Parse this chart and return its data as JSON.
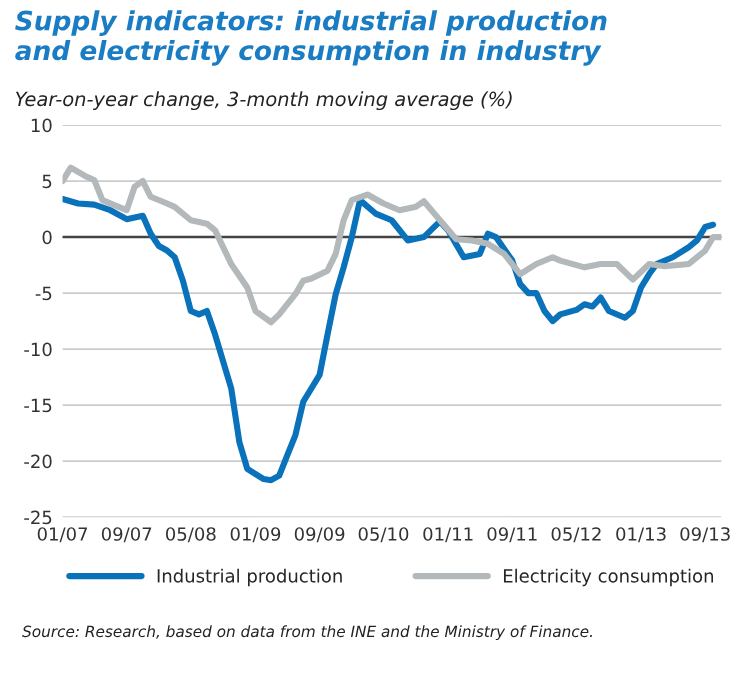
{
  "chart_data": {
    "type": "line",
    "title": "Supply indicators: industrial production\nand electricity consumption in industry",
    "subtitle": "Year-on-year change, 3-month moving average (%)",
    "x": [
      "2007-01",
      "2007-03",
      "2007-05",
      "2007-07",
      "2007-09",
      "2007-11",
      "2007-12",
      "2008-01",
      "2008-02",
      "2008-03",
      "2008-04",
      "2008-05",
      "2008-06",
      "2008-07",
      "2008-08",
      "2008-10",
      "2008-11",
      "2008-12",
      "2009-02",
      "2009-03",
      "2009-04",
      "2009-05",
      "2009-06",
      "2009-07",
      "2009-09",
      "2009-10",
      "2009-11",
      "2009-12",
      "2010-01",
      "2010-02",
      "2010-04",
      "2010-06",
      "2010-08",
      "2010-10",
      "2010-12",
      "2011-01",
      "2011-03",
      "2011-05",
      "2011-06",
      "2011-07",
      "2011-09",
      "2011-10",
      "2011-11",
      "2011-12",
      "2012-01",
      "2012-02",
      "2012-03",
      "2012-05",
      "2012-06",
      "2012-07",
      "2012-08",
      "2012-09",
      "2012-11",
      "2012-12",
      "2013-01",
      "2013-02",
      "2013-03",
      "2013-05",
      "2013-07",
      "2013-08",
      "2013-09",
      "2013-10"
    ],
    "series": [
      {
        "name": "Industrial production",
        "color": "#0a72ba",
        "values": [
          3.4,
          3.0,
          2.9,
          2.4,
          1.6,
          1.9,
          0.3,
          -0.8,
          -1.2,
          -1.8,
          -3.9,
          -6.6,
          -6.9,
          -6.6,
          -8.7,
          -13.5,
          -18.3,
          -20.7,
          -21.6,
          -21.7,
          -21.3,
          -19.5,
          -17.7,
          -14.7,
          -12.3,
          -8.7,
          -5.1,
          -2.7,
          0,
          3.3,
          2.1,
          1.5,
          -0.3,
          0,
          1.4,
          0.6,
          -1.8,
          -1.5,
          0.3,
          0,
          -2.1,
          -4.2,
          -5,
          -5,
          -6.6,
          -7.5,
          -6.9,
          -6.5,
          -6,
          -6.2,
          -5.4,
          -6.6,
          -7.2,
          -6.6,
          -4.5,
          -3.3,
          -2.4,
          -1.8,
          -0.9,
          -0.3,
          0.9,
          1.1
        ]
      },
      {
        "name": "Electricity consumption",
        "color": "#b3b9bb",
        "x": [
          "2007-01",
          "2007-02",
          "2007-04",
          "2007-05",
          "2007-06",
          "2007-08",
          "2007-09",
          "2007-10",
          "2007-11",
          "2007-12",
          "2008-02",
          "2008-03",
          "2008-05",
          "2008-07",
          "2008-08",
          "2008-10",
          "2008-12",
          "2009-01",
          "2009-03",
          "2009-04",
          "2009-06",
          "2009-07",
          "2009-08",
          "2009-10",
          "2009-11",
          "2009-12",
          "2010-01",
          "2010-03",
          "2010-05",
          "2010-07",
          "2010-09",
          "2010-10",
          "2010-12",
          "2011-02",
          "2011-04",
          "2011-06",
          "2011-08",
          "2011-10",
          "2011-12",
          "2012-02",
          "2012-03",
          "2012-06",
          "2012-08",
          "2012-10",
          "2012-12",
          "2013-02",
          "2013-04",
          "2013-07",
          "2013-09",
          "2013-10",
          "2013-11"
        ],
        "values": [
          5.0,
          6.2,
          5.4,
          5.1,
          3.3,
          2.7,
          2.4,
          4.5,
          5.0,
          3.6,
          3.0,
          2.7,
          1.5,
          1.2,
          0.6,
          -2.4,
          -4.5,
          -6.6,
          -7.6,
          -6.9,
          -5.1,
          -3.9,
          -3.7,
          -3.0,
          -1.5,
          1.5,
          3.3,
          3.8,
          3.0,
          2.4,
          2.7,
          3.2,
          1.5,
          -0.2,
          -0.3,
          -0.6,
          -1.5,
          -3.3,
          -2.4,
          -1.8,
          -2.1,
          -2.7,
          -2.4,
          -2.4,
          -3.8,
          -2.4,
          -2.6,
          -2.4,
          -1.2,
          0,
          0
        ]
      }
    ],
    "xlim": [
      "2007-01",
      "2013-11"
    ],
    "xticks": [
      {
        "value": "2007-01",
        "label": "01/07"
      },
      {
        "value": "2007-09",
        "label": "09/07"
      },
      {
        "value": "2008-05",
        "label": "05/08"
      },
      {
        "value": "2009-01",
        "label": "01/09"
      },
      {
        "value": "2009-09",
        "label": "09/09"
      },
      {
        "value": "2010-05",
        "label": "05/10"
      },
      {
        "value": "2011-01",
        "label": "01/11"
      },
      {
        "value": "2011-09",
        "label": "09/11"
      },
      {
        "value": "2012-05",
        "label": "05/12"
      },
      {
        "value": "2013-01",
        "label": "01/13"
      },
      {
        "value": "2013-09",
        "label": "09/13"
      }
    ],
    "ylim": [
      -25,
      10
    ],
    "yticks": [
      -25,
      -20,
      -15,
      -10,
      -5,
      0,
      5,
      10
    ],
    "grid": "y",
    "ref_lines": [
      {
        "axis": "y",
        "value": 0,
        "color": "#444444"
      }
    ],
    "legend": "bottom",
    "annotations": [
      "Source: Research, based on data from the INE and the Ministry of Finance."
    ]
  }
}
